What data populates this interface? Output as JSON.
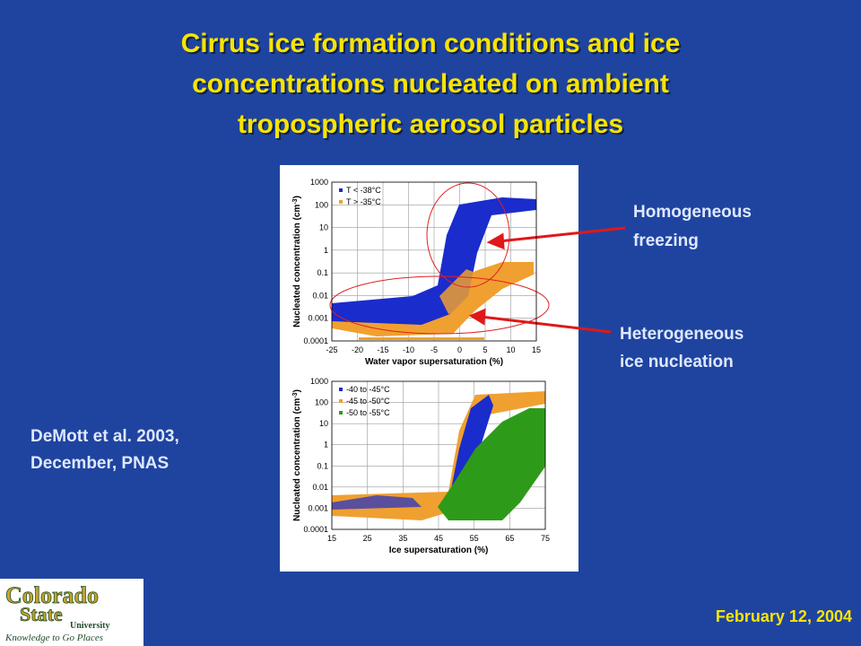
{
  "title_lines": [
    "Cirrus ice formation conditions and ice",
    "concentrations nucleated on ambient",
    "tropospheric aerosol particles"
  ],
  "annotations": {
    "homogeneous": [
      "Homogeneous",
      "freezing"
    ],
    "heterogeneous": [
      "Heterogeneous",
      "ice nucleation"
    ]
  },
  "citation": [
    "DeMott et al. 2003,",
    "December, PNAS"
  ],
  "date": "February 12, 2004",
  "logo": {
    "lines": [
      "Colorado",
      "State",
      "University"
    ],
    "tagline": "Knowledge to Go Places"
  },
  "figure": {
    "top": {
      "y_label": [
        "Nucleated concentration (cm",
        "-3",
        ")"
      ],
      "x_label": "Water vapor supersaturation (%)",
      "yticks": [
        1000,
        100,
        10,
        1,
        0.1,
        0.01,
        0.001,
        0.0001
      ],
      "xticks": [
        -25,
        -20,
        -15,
        -10,
        -5,
        0,
        5,
        10,
        15
      ],
      "legend": [
        {
          "name": "T < -38°C",
          "color": "#1a2ccc"
        },
        {
          "name": "T > -35°C",
          "color": "#f0a030"
        }
      ]
    },
    "bottom": {
      "y_label": [
        "Nucleated concentration (cm",
        "-3",
        ")"
      ],
      "x_label": "Ice supersaturation (%)",
      "yticks": [
        1000,
        100,
        10,
        1,
        0.1,
        0.01,
        0.001,
        0.0001
      ],
      "xticks": [
        15,
        25,
        35,
        45,
        55,
        65,
        75
      ],
      "legend": [
        {
          "name": "-40 to -45°C",
          "color": "#1a2ccc"
        },
        {
          "name": "-45 to -50°C",
          "color": "#f0a030"
        },
        {
          "name": "-50 to -55°C",
          "color": "#2e9a1a"
        }
      ]
    }
  }
}
